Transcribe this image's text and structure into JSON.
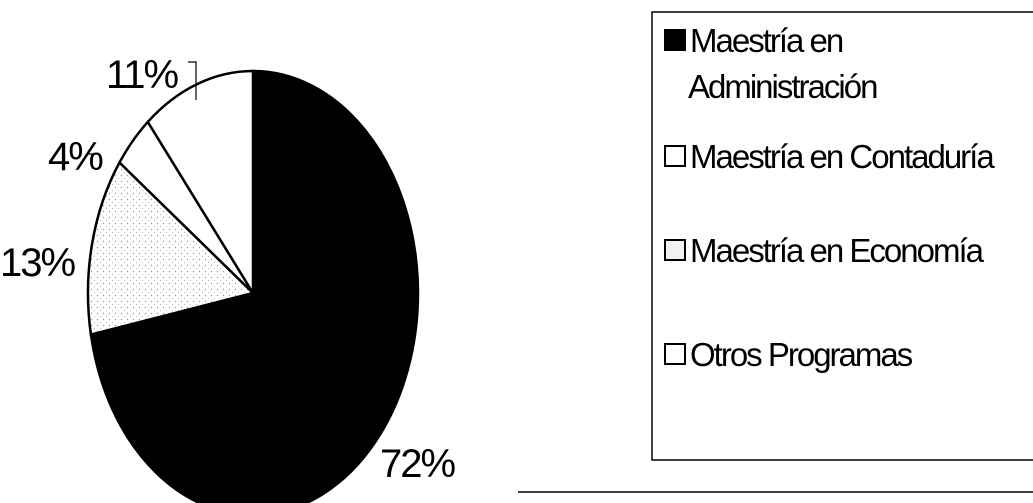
{
  "chart_data": {
    "type": "pie",
    "title": "",
    "categories": [
      "Maestría en Administración",
      "Maestría en Contaduría",
      "Maestría en Economía",
      "Otros Programas"
    ],
    "values": [
      72,
      13,
      4,
      11
    ],
    "labels": [
      "72%",
      "13%",
      "4%",
      "11%"
    ],
    "legend": {
      "position": "right",
      "items": [
        {
          "lines": [
            "Maestría en",
            "Administración"
          ]
        },
        {
          "lines": [
            "Maestría en Contaduría"
          ]
        },
        {
          "lines": [
            "Maestría en Economía"
          ]
        },
        {
          "lines": [
            "Otros Programas"
          ]
        }
      ]
    },
    "colors": [
      "#000000",
      "#f2f2f2",
      "#ffffff",
      "#ffffff"
    ]
  }
}
